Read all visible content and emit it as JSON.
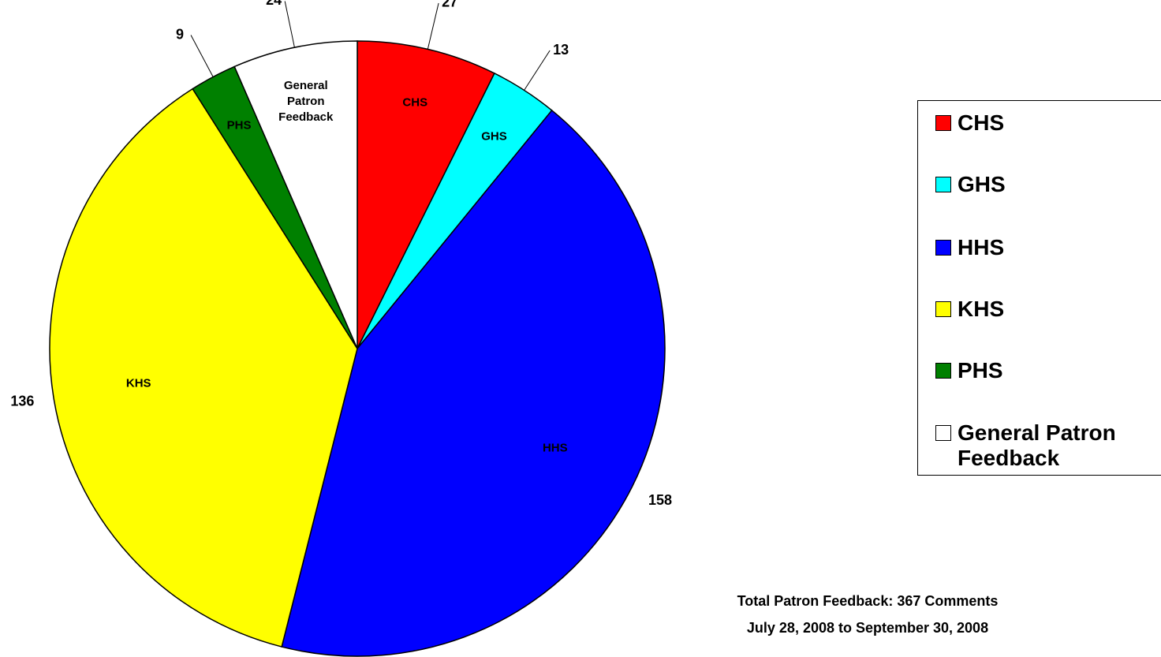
{
  "chart_data": {
    "type": "pie",
    "categories": [
      "CHS",
      "GHS",
      "HHS",
      "KHS",
      "PHS",
      "General Patron Feedback"
    ],
    "values": [
      27,
      13,
      158,
      136,
      9,
      24
    ],
    "colors": [
      "#ff0000",
      "#00ffff",
      "#0000ff",
      "#ffff00",
      "#008000",
      "#ffffff"
    ],
    "legend": "right",
    "annotations": [
      "Total Patron Feedback:  367 Comments",
      "July 28, 2008 to September 30, 2008"
    ]
  }
}
